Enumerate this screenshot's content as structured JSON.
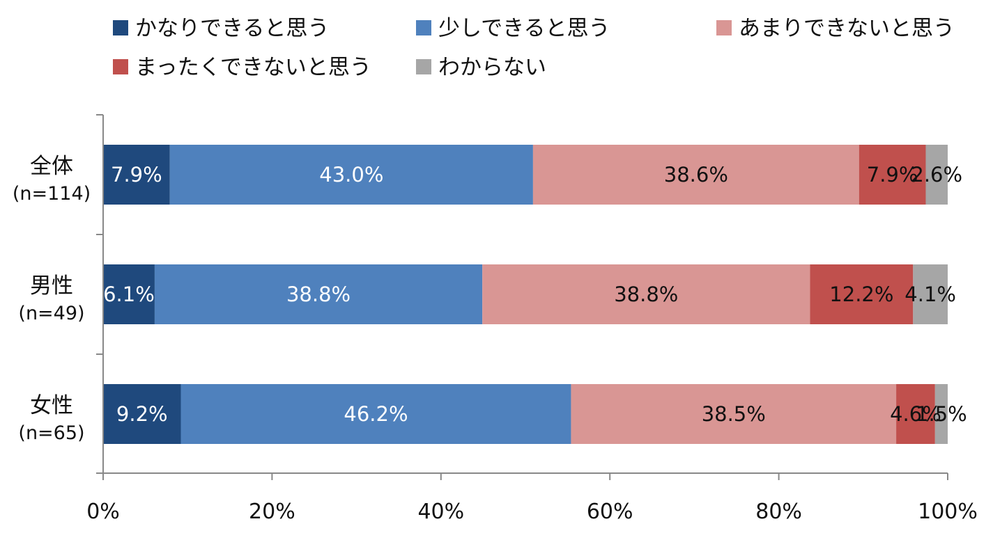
{
  "chart_data": {
    "type": "bar",
    "orientation": "horizontal",
    "stacked": "percent",
    "categories": [
      {
        "name": "全体",
        "n": "(n=114)"
      },
      {
        "name": "男性",
        "n": "(n=49)"
      },
      {
        "name": "女性",
        "n": "(n=65)"
      }
    ],
    "series": [
      {
        "name": "かなりできると思う",
        "color": "#1f497d",
        "label_color": "#ffffff",
        "values": [
          7.9,
          6.1,
          9.2
        ],
        "labels": [
          "7.9%",
          "6.1%",
          "9.2%"
        ]
      },
      {
        "name": "少しできると思う",
        "color": "#4f81bd",
        "label_color": "#ffffff",
        "values": [
          43.0,
          38.8,
          46.2
        ],
        "labels": [
          "43.0%",
          "38.8%",
          "46.2%"
        ]
      },
      {
        "name": "あまりできないと思う",
        "color": "#d99694",
        "label_color": "#111111",
        "values": [
          38.6,
          38.8,
          38.5
        ],
        "labels": [
          "38.6%",
          "38.8%",
          "38.5%"
        ]
      },
      {
        "name": "まったくできないと思う",
        "color": "#c0504d",
        "label_color": "#111111",
        "values": [
          7.9,
          12.2,
          4.6
        ],
        "labels": [
          "7.9%",
          "12.2%",
          "4.6%"
        ]
      },
      {
        "name": "わからない",
        "color": "#a6a6a6",
        "label_color": "#111111",
        "values": [
          2.6,
          4.1,
          1.5
        ],
        "labels": [
          "2.6%",
          "4.1%",
          "1.5%"
        ]
      }
    ],
    "xlim": [
      0,
      100
    ],
    "x_ticks": [
      "0%",
      "20%",
      "40%",
      "60%",
      "80%",
      "100%"
    ],
    "legend_position": "top",
    "grid": false
  }
}
